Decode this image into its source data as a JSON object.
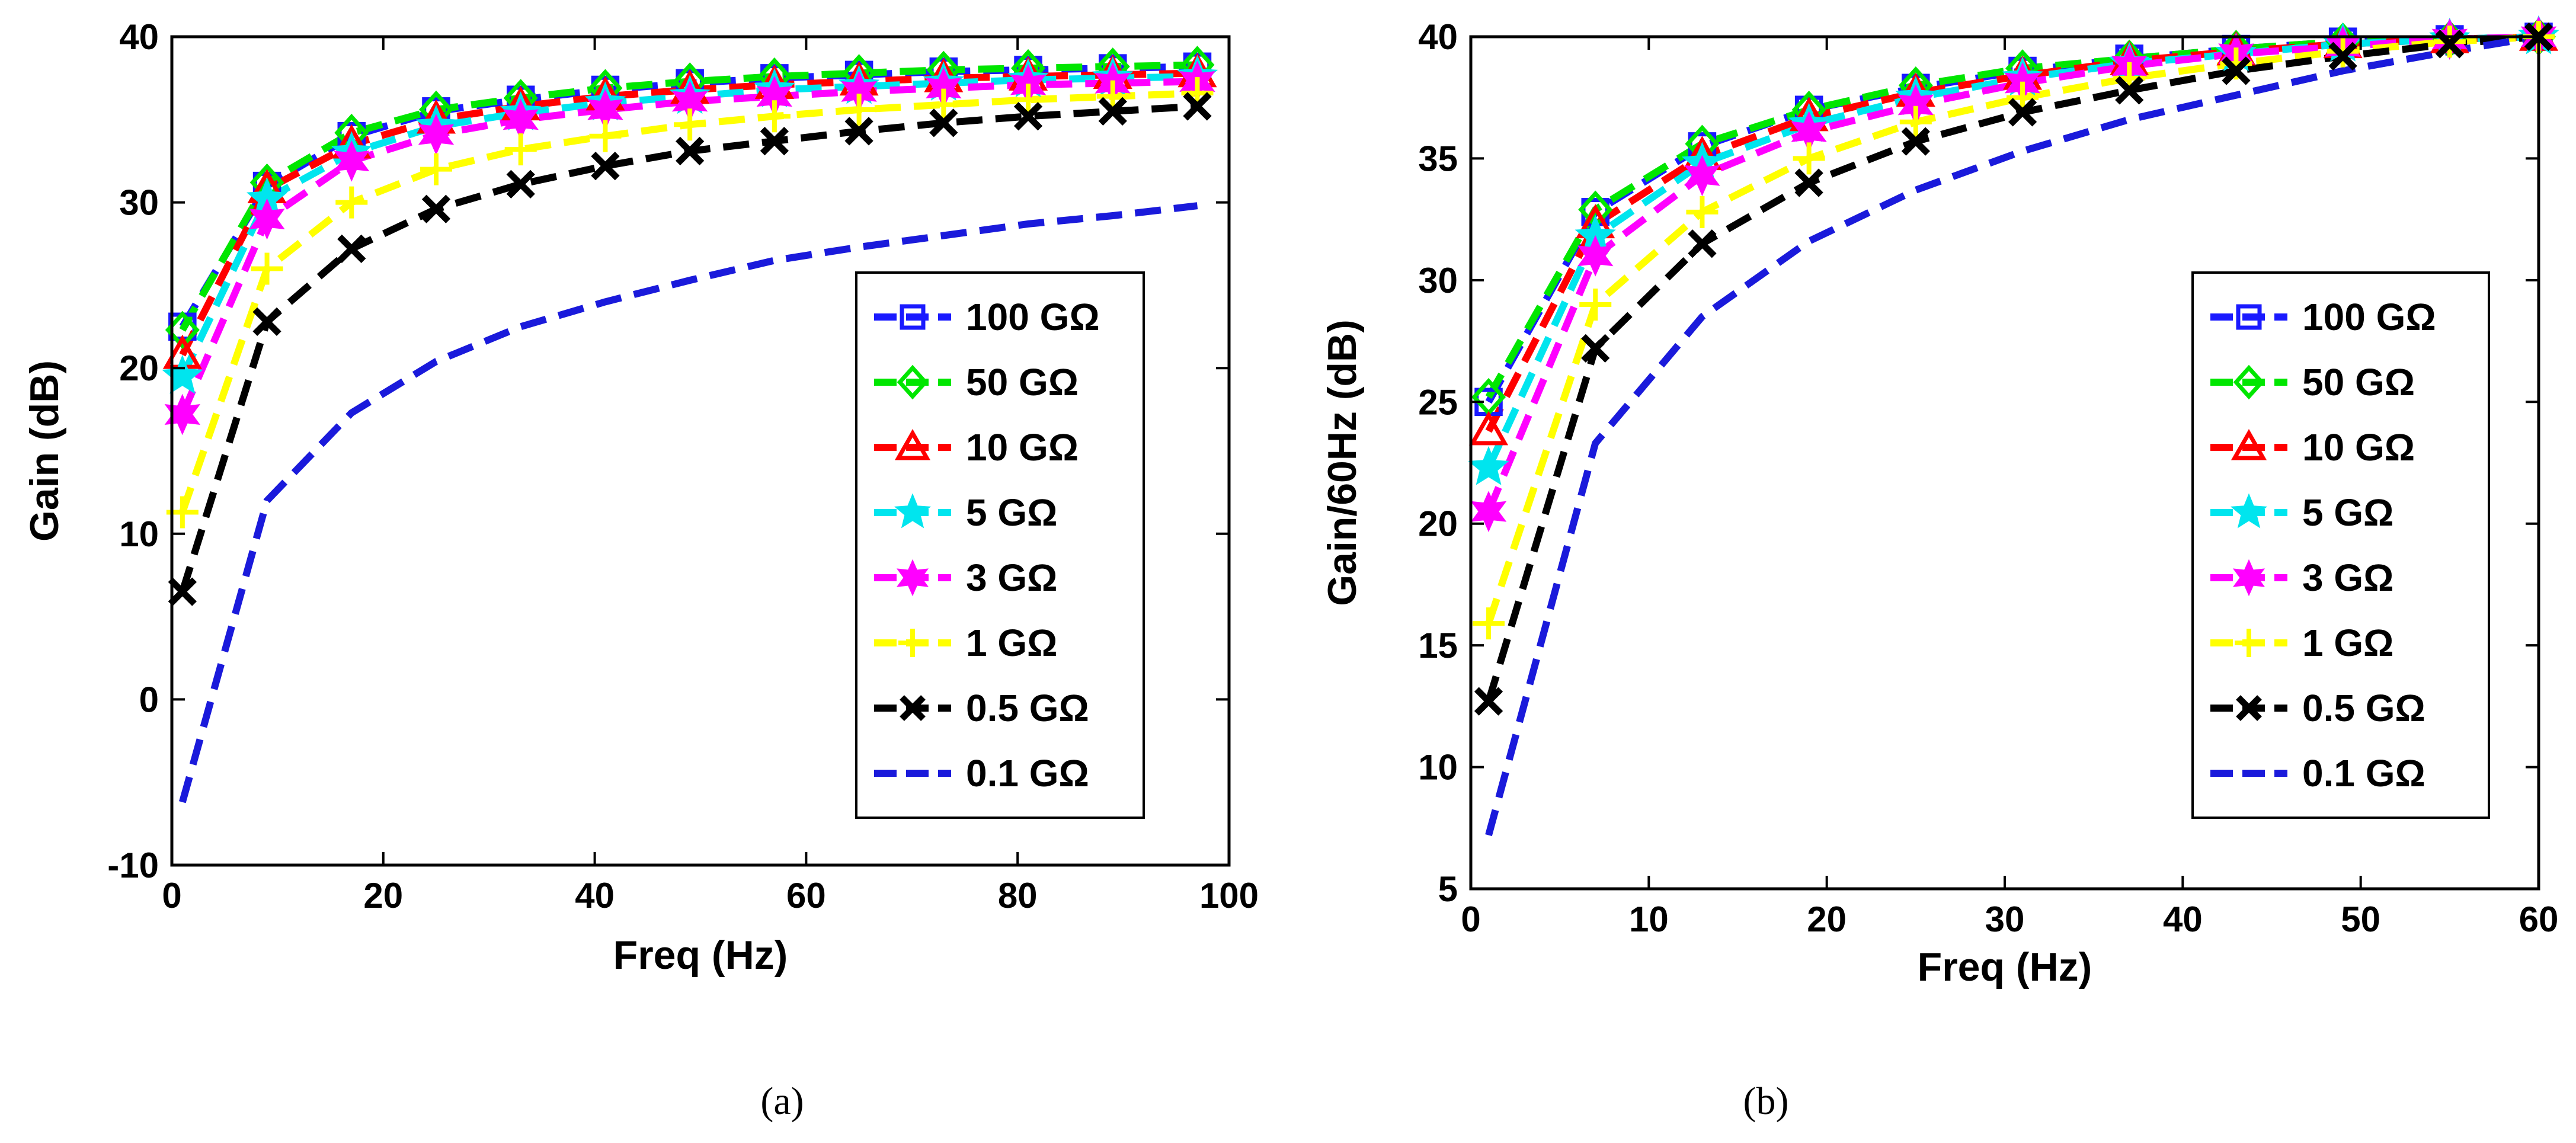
{
  "figure": {
    "background": "#ffffff"
  },
  "chart_data": [
    {
      "type": "line",
      "panel_caption": "(a)",
      "xlabel": "Freq (Hz)",
      "ylabel": "Gain (dB)",
      "xlim": [
        0,
        100
      ],
      "ylim": [
        -10,
        40
      ],
      "xticks": [
        0,
        20,
        40,
        60,
        80,
        100
      ],
      "yticks": [
        -10,
        0,
        10,
        20,
        30,
        40
      ],
      "grid": false,
      "legend_position": "right-middle",
      "x": [
        1,
        9,
        17,
        25,
        33,
        41,
        49,
        57,
        65,
        73,
        81,
        89,
        97
      ],
      "series": [
        {
          "name": "100 GΩ",
          "color": "#1a1aff",
          "marker": "square",
          "dashed": true,
          "values": [
            22.5,
            31.0,
            34.0,
            35.5,
            36.2,
            36.8,
            37.2,
            37.5,
            37.7,
            37.9,
            38.0,
            38.1,
            38.2
          ]
        },
        {
          "name": "50 GΩ",
          "color": "#00e600",
          "marker": "diamond",
          "dashed": true,
          "values": [
            22.3,
            31.2,
            34.2,
            35.6,
            36.3,
            36.9,
            37.3,
            37.6,
            37.8,
            38.0,
            38.1,
            38.2,
            38.3
          ]
        },
        {
          "name": "10 GΩ",
          "color": "#ff0000",
          "marker": "triangle",
          "dashed": true,
          "values": [
            20.8,
            30.8,
            33.5,
            35.0,
            35.8,
            36.4,
            36.8,
            37.1,
            37.3,
            37.5,
            37.6,
            37.7,
            37.8
          ]
        },
        {
          "name": "5 GΩ",
          "color": "#00e5ee",
          "marker": "star5",
          "dashed": true,
          "values": [
            19.5,
            30.2,
            33.0,
            34.6,
            35.4,
            36.0,
            36.4,
            36.8,
            37.0,
            37.2,
            37.4,
            37.5,
            37.6
          ]
        },
        {
          "name": "3 GΩ",
          "color": "#ff00ff",
          "marker": "star6",
          "dashed": true,
          "values": [
            17.2,
            29.0,
            32.5,
            34.1,
            35.0,
            35.6,
            36.1,
            36.4,
            36.7,
            36.9,
            37.1,
            37.2,
            37.3
          ]
        },
        {
          "name": "1 GΩ",
          "color": "#ffff00",
          "marker": "plus",
          "dashed": true,
          "values": [
            11.3,
            26.0,
            30.0,
            32.0,
            33.2,
            34.0,
            34.7,
            35.2,
            35.6,
            35.9,
            36.2,
            36.4,
            36.6
          ]
        },
        {
          "name": "0.5 GΩ",
          "color": "#000000",
          "marker": "x",
          "dashed": true,
          "values": [
            6.5,
            22.8,
            27.2,
            29.6,
            31.1,
            32.2,
            33.1,
            33.7,
            34.3,
            34.8,
            35.2,
            35.5,
            35.8
          ]
        },
        {
          "name": "0.1 GΩ",
          "color": "#1a1adb",
          "marker": "none",
          "dashed": true,
          "values": [
            -6.2,
            12.0,
            17.3,
            20.4,
            22.5,
            24.0,
            25.3,
            26.5,
            27.3,
            28.0,
            28.7,
            29.2,
            29.8
          ]
        }
      ]
    },
    {
      "type": "line",
      "panel_caption": "(b)",
      "xlabel": "Freq (Hz)",
      "ylabel": "Gain/60Hz (dB)",
      "xlim": [
        0,
        60
      ],
      "ylim": [
        5,
        40
      ],
      "xticks": [
        0,
        10,
        20,
        30,
        40,
        50,
        60
      ],
      "yticks": [
        5,
        10,
        15,
        20,
        25,
        30,
        35,
        40
      ],
      "grid": false,
      "legend_position": "right-middle",
      "x": [
        1,
        7,
        13,
        19,
        25,
        31,
        37,
        43,
        49,
        55,
        60
      ],
      "series": [
        {
          "name": "100 GΩ",
          "color": "#1a1aff",
          "marker": "square",
          "dashed": true,
          "values": [
            25.0,
            32.8,
            35.5,
            37.0,
            37.9,
            38.6,
            39.1,
            39.5,
            39.8,
            39.9,
            40.0
          ]
        },
        {
          "name": "50 GΩ",
          "color": "#00e600",
          "marker": "diamond",
          "dashed": true,
          "values": [
            25.2,
            32.9,
            35.6,
            37.0,
            38.0,
            38.7,
            39.1,
            39.5,
            39.8,
            39.9,
            40.0
          ]
        },
        {
          "name": "10 GΩ",
          "color": "#ff0000",
          "marker": "triangle",
          "dashed": true,
          "values": [
            23.8,
            32.3,
            35.1,
            36.7,
            37.7,
            38.4,
            39.0,
            39.4,
            39.7,
            39.9,
            40.0
          ]
        },
        {
          "name": "5 GΩ",
          "color": "#00e5ee",
          "marker": "star5",
          "dashed": true,
          "values": [
            22.3,
            31.8,
            34.8,
            36.4,
            37.5,
            38.3,
            38.9,
            39.3,
            39.7,
            39.9,
            40.0
          ]
        },
        {
          "name": "3 GΩ",
          "color": "#ff00ff",
          "marker": "star6",
          "dashed": true,
          "values": [
            20.5,
            31.0,
            34.3,
            36.1,
            37.2,
            38.1,
            38.8,
            39.3,
            39.6,
            39.9,
            40.0
          ]
        },
        {
          "name": "1 GΩ",
          "color": "#ffff00",
          "marker": "plus",
          "dashed": true,
          "values": [
            15.9,
            29.0,
            32.8,
            35.0,
            36.5,
            37.5,
            38.3,
            38.9,
            39.4,
            39.8,
            40.0
          ]
        },
        {
          "name": "0.5 GΩ",
          "color": "#000000",
          "marker": "x",
          "dashed": true,
          "values": [
            12.7,
            27.2,
            31.5,
            34.0,
            35.7,
            36.9,
            37.8,
            38.6,
            39.2,
            39.7,
            40.0
          ]
        },
        {
          "name": "0.1 GΩ",
          "color": "#1a1adb",
          "marker": "none",
          "dashed": true,
          "values": [
            7.2,
            23.3,
            28.5,
            31.6,
            33.7,
            35.3,
            36.6,
            37.6,
            38.6,
            39.4,
            40.0
          ]
        }
      ]
    }
  ]
}
